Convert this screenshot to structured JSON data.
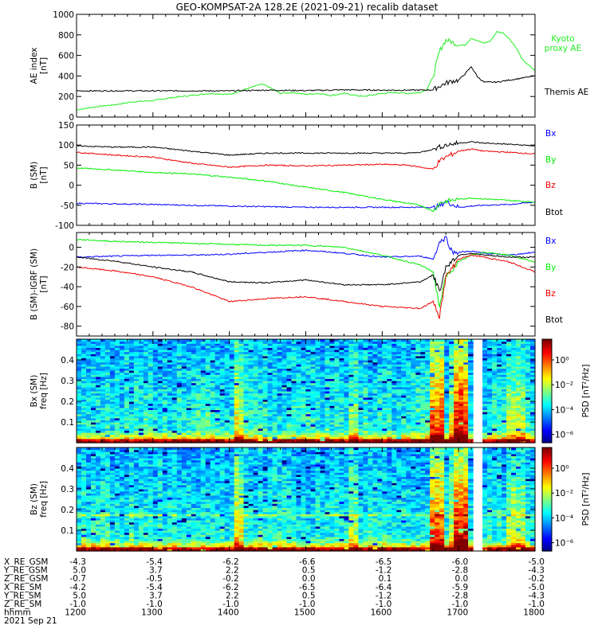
{
  "title": "GEO-KOMPSAT-2A 128.2E (2021-09-21) recalib dataset",
  "colors": {
    "black": "#000000",
    "blue": "#0000ff",
    "green": "#00ee00",
    "red": "#ee0000",
    "ae_green": "#22ee22"
  },
  "time_axis": {
    "label": "hhmm",
    "date": "2021 Sep 21",
    "range": [
      1200,
      1800
    ],
    "ticks": [
      "1200",
      "1300",
      "1400",
      "1500",
      "1600",
      "1700",
      "1800"
    ]
  },
  "ephemeris": {
    "rows": [
      {
        "label": "X_RE_GSM",
        "values": [
          "-4.3",
          "-5.4",
          "-6.2",
          "-6.6",
          "-6.5",
          "-6.0",
          "-5.0"
        ]
      },
      {
        "label": "Y_RE_GSM",
        "values": [
          "5.0",
          "3.7",
          "2.2",
          "0.5",
          "-1.2",
          "-2.8",
          "-4.3"
        ]
      },
      {
        "label": "Z_RE_GSM",
        "values": [
          "-0.7",
          "-0.5",
          "-0.2",
          "0.0",
          "0.1",
          "0.0",
          "-0.2"
        ]
      },
      {
        "label": "X_RE_SM",
        "values": [
          "-4.2",
          "-5.4",
          "-6.2",
          "-6.5",
          "-6.4",
          "-5.9",
          "-5.0"
        ]
      },
      {
        "label": "Y_RE_SM",
        "values": [
          "5.0",
          "3.7",
          "2.2",
          "0.5",
          "-1.2",
          "-2.8",
          "-4.3"
        ]
      },
      {
        "label": "Z_RE_SM",
        "values": [
          "-1.0",
          "-1.0",
          "-1.0",
          "-1.0",
          "-1.0",
          "-1.0",
          "-1.0"
        ]
      }
    ]
  },
  "chart_data": [
    {
      "type": "line",
      "ylabel": "AE index",
      "yunit": "[nT]",
      "ylim": [
        0,
        1000
      ],
      "yticks": [
        "0",
        "200",
        "400",
        "600",
        "800",
        "1000"
      ],
      "series": [
        {
          "name": "Kyoto proxy AE",
          "label_lines": [
            "Kyoto",
            "proxy AE"
          ],
          "color": "#22ee22",
          "x": [
            1200,
            1215,
            1230,
            1245,
            1300,
            1315,
            1330,
            1345,
            1400,
            1415,
            1425,
            1430,
            1440,
            1450,
            1500,
            1510,
            1520,
            1530,
            1545,
            1600,
            1610,
            1620,
            1630,
            1635,
            1640,
            1645,
            1650,
            1655,
            1700,
            1705,
            1710,
            1715,
            1720,
            1725,
            1730,
            1735,
            1740,
            1745,
            1750,
            1800
          ],
          "y": [
            70,
            100,
            120,
            150,
            160,
            190,
            210,
            230,
            220,
            280,
            320,
            300,
            230,
            240,
            220,
            230,
            210,
            230,
            200,
            230,
            240,
            230,
            240,
            270,
            390,
            640,
            750,
            730,
            700,
            700,
            770,
            740,
            720,
            740,
            830,
            820,
            760,
            680,
            560,
            450
          ]
        },
        {
          "name": "Themis AE",
          "label_lines": [
            "Themis AE"
          ],
          "color": "#000000",
          "x": [
            1200,
            1300,
            1400,
            1430,
            1500,
            1530,
            1600,
            1630,
            1640,
            1645,
            1650,
            1655,
            1700,
            1705,
            1710,
            1715,
            1720,
            1730,
            1740,
            1750,
            1800
          ],
          "y": [
            255,
            255,
            255,
            262,
            258,
            265,
            262,
            262,
            265,
            300,
            330,
            350,
            360,
            420,
            490,
            390,
            340,
            340,
            360,
            380,
            400
          ]
        }
      ]
    },
    {
      "type": "line",
      "ylabel": "B (SM)",
      "yunit": "[nT]",
      "ylim": [
        -100,
        150
      ],
      "yticks": [
        "-100",
        "-50",
        "0",
        "50",
        "100",
        "150"
      ],
      "series": [
        {
          "name": "Bx",
          "color": "#0000ff",
          "x": [
            1200,
            1300,
            1400,
            1500,
            1600,
            1640,
            1645,
            1650,
            1700,
            1710,
            1720,
            1740,
            1800
          ],
          "y": [
            -45,
            -48,
            -52,
            -55,
            -55,
            -55,
            -52,
            -40,
            -55,
            -52,
            -50,
            -48,
            -42
          ]
        },
        {
          "name": "By",
          "color": "#00ee00",
          "x": [
            1200,
            1230,
            1300,
            1330,
            1400,
            1430,
            1500,
            1530,
            1600,
            1620,
            1630,
            1640,
            1645,
            1650,
            1700,
            1710,
            1720,
            1740,
            1800
          ],
          "y": [
            43,
            38,
            32,
            28,
            20,
            10,
            -5,
            -18,
            -35,
            -45,
            -50,
            -65,
            -45,
            -40,
            -35,
            -32,
            -34,
            -38,
            -42
          ]
        },
        {
          "name": "Bz",
          "color": "#ee0000",
          "x": [
            1200,
            1230,
            1300,
            1330,
            1400,
            1430,
            1500,
            1530,
            1600,
            1620,
            1630,
            1640,
            1645,
            1650,
            1700,
            1710,
            1720,
            1740,
            1800
          ],
          "y": [
            82,
            75,
            70,
            55,
            45,
            50,
            48,
            50,
            52,
            50,
            45,
            40,
            60,
            70,
            85,
            90,
            85,
            82,
            78
          ]
        },
        {
          "name": "Btot",
          "color": "#000000",
          "x": [
            1200,
            1230,
            1300,
            1330,
            1400,
            1430,
            1500,
            1530,
            1600,
            1620,
            1630,
            1640,
            1645,
            1650,
            1700,
            1710,
            1720,
            1740,
            1800
          ],
          "y": [
            98,
            95,
            95,
            85,
            75,
            80,
            80,
            80,
            80,
            80,
            82,
            90,
            95,
            100,
            105,
            108,
            105,
            102,
            98
          ]
        }
      ]
    },
    {
      "type": "line",
      "ylabel": "B (SM)-IGRF (SM)",
      "yunit": "[nT]",
      "ylim": [
        -90,
        15
      ],
      "yticks": [
        "-80",
        "-60",
        "-40",
        "-20",
        "0"
      ],
      "series": [
        {
          "name": "Bx",
          "color": "#0000ff",
          "x": [
            1200,
            1230,
            1300,
            1330,
            1400,
            1430,
            1500,
            1530,
            1600,
            1630,
            1640,
            1645,
            1650,
            1655,
            1700,
            1710,
            1720,
            1740,
            1800
          ],
          "y": [
            -10,
            -9,
            -8,
            -8,
            -7,
            -5,
            -3,
            -6,
            -10,
            -9,
            -12,
            5,
            10,
            -5,
            -5,
            -4,
            -6,
            -8,
            -5
          ]
        },
        {
          "name": "By",
          "color": "#00ee00",
          "x": [
            1200,
            1230,
            1300,
            1330,
            1400,
            1430,
            1500,
            1530,
            1600,
            1630,
            1640,
            1645,
            1650,
            1700,
            1710,
            1720,
            1740,
            1800
          ],
          "y": [
            8,
            6,
            5,
            4,
            3,
            2,
            2,
            0,
            -8,
            -18,
            -25,
            -60,
            -30,
            -15,
            -8,
            -5,
            -8,
            -15
          ]
        },
        {
          "name": "Bz",
          "color": "#ee0000",
          "x": [
            1200,
            1230,
            1300,
            1330,
            1400,
            1430,
            1500,
            1530,
            1600,
            1630,
            1640,
            1645,
            1650,
            1700,
            1710,
            1720,
            1740,
            1800
          ],
          "y": [
            -20,
            -24,
            -30,
            -40,
            -55,
            -52,
            -50,
            -55,
            -60,
            -62,
            -55,
            -70,
            -30,
            -12,
            -8,
            -10,
            -15,
            -25
          ]
        },
        {
          "name": "Btot",
          "color": "#000000",
          "x": [
            1200,
            1230,
            1300,
            1330,
            1400,
            1430,
            1500,
            1530,
            1600,
            1630,
            1640,
            1645,
            1650,
            1700,
            1710,
            1720,
            1740,
            1800
          ],
          "y": [
            -10,
            -14,
            -20,
            -25,
            -35,
            -36,
            -33,
            -38,
            -38,
            -35,
            -28,
            -45,
            -20,
            -8,
            -6,
            -8,
            -10,
            -10
          ]
        }
      ]
    },
    {
      "type": "heatmap",
      "component": "Bx",
      "ylabel": "Bx (SM)",
      "ylabel2": "freq [Hz]",
      "ylim": [
        0,
        0.5
      ],
      "yticks": [
        "0.1",
        "0.2",
        "0.3",
        "0.4"
      ],
      "colorbar": {
        "label": "PSD [nT²/Hz]",
        "ticks": [
          "10⁰",
          "10⁻²",
          "10⁻⁴",
          "10⁻⁶"
        ]
      },
      "data_gap": [
        1713,
        1718
      ]
    },
    {
      "type": "heatmap",
      "component": "Bz",
      "ylabel": "Bz (SM)",
      "ylabel2": "freq [Hz]",
      "ylim": [
        0,
        0.5
      ],
      "yticks": [
        "0.1",
        "0.2",
        "0.3",
        "0.4"
      ],
      "colorbar": {
        "label": "PSD [nT²/Hz]",
        "ticks": [
          "10⁰",
          "10⁻²",
          "10⁻⁴",
          "10⁻⁶"
        ]
      },
      "data_gap": [
        1713,
        1718
      ]
    }
  ]
}
